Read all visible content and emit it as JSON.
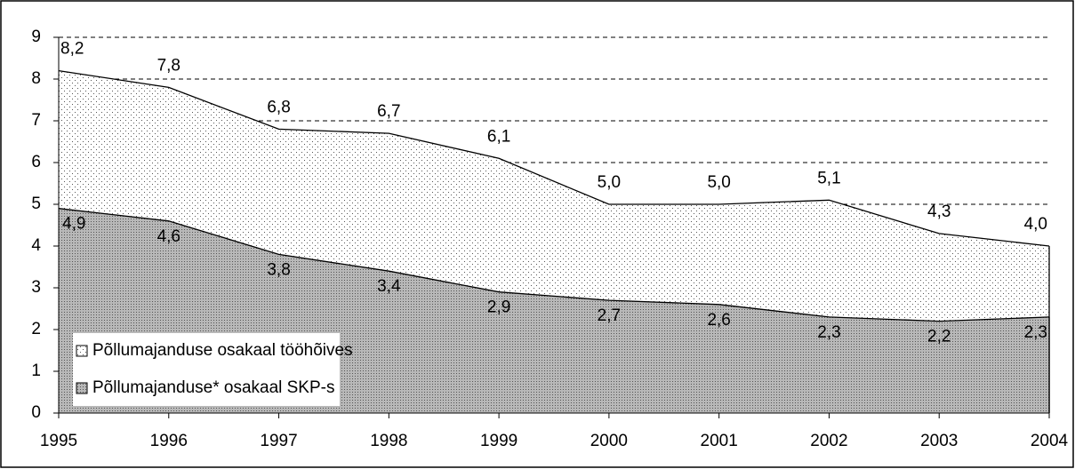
{
  "chart_data": {
    "type": "area",
    "categories": [
      "1995",
      "1996",
      "1997",
      "1998",
      "1999",
      "2000",
      "2001",
      "2002",
      "2003",
      "2004"
    ],
    "series": [
      {
        "name": "Põllumajanduse osakaal tööhõives",
        "color": "#ffffff",
        "values": [
          8.2,
          7.8,
          6.8,
          6.7,
          6.1,
          5.0,
          5.0,
          5.1,
          4.3,
          4.0
        ],
        "value_labels": [
          "8,2",
          "7,8",
          "6,8",
          "6,7",
          "6,1",
          "5,0",
          "5,0",
          "5,1",
          "4,3",
          "4,0"
        ]
      },
      {
        "name": "Põllumajanduse* osakaal SKP-s",
        "color": "#b8b8b8",
        "values": [
          4.9,
          4.6,
          3.8,
          3.4,
          2.9,
          2.7,
          2.6,
          2.3,
          2.2,
          2.3
        ],
        "value_labels": [
          "4,9",
          "4,6",
          "3,8",
          "3,4",
          "2,9",
          "2,7",
          "2,6",
          "2,3",
          "2,2",
          "2,3"
        ]
      }
    ],
    "ylim": [
      0,
      9
    ],
    "yticks": [
      0,
      1,
      2,
      3,
      4,
      5,
      6,
      7,
      8,
      9
    ],
    "grid": true,
    "legend": "lower left"
  }
}
